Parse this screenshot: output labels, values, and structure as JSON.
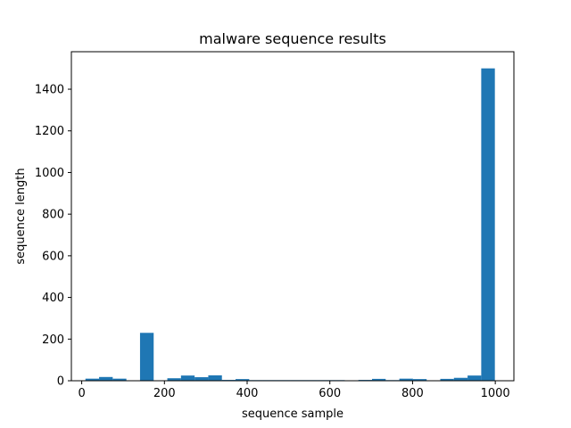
{
  "chart_data": {
    "type": "bar",
    "title": "malware sequence results",
    "xlabel": "sequence sample",
    "ylabel": "sequence length",
    "xlim": [
      -25,
      1045
    ],
    "ylim": [
      0,
      1580
    ],
    "xticks": [
      0,
      200,
      400,
      600,
      800,
      1000
    ],
    "yticks": [
      0,
      200,
      400,
      600,
      800,
      1000,
      1200,
      1400
    ],
    "bin_width": 33,
    "bins": [
      {
        "x0": 9,
        "value": 10
      },
      {
        "x0": 42,
        "value": 18
      },
      {
        "x0": 75,
        "value": 10
      },
      {
        "x0": 108,
        "value": 2
      },
      {
        "x0": 141,
        "value": 230
      },
      {
        "x0": 174,
        "value": 2
      },
      {
        "x0": 207,
        "value": 12
      },
      {
        "x0": 240,
        "value": 25
      },
      {
        "x0": 273,
        "value": 17
      },
      {
        "x0": 306,
        "value": 26
      },
      {
        "x0": 339,
        "value": 4
      },
      {
        "x0": 372,
        "value": 8
      },
      {
        "x0": 405,
        "value": 3
      },
      {
        "x0": 438,
        "value": 3
      },
      {
        "x0": 471,
        "value": 3
      },
      {
        "x0": 504,
        "value": 3
      },
      {
        "x0": 537,
        "value": 3
      },
      {
        "x0": 570,
        "value": 3
      },
      {
        "x0": 603,
        "value": 3
      },
      {
        "x0": 636,
        "value": 1
      },
      {
        "x0": 669,
        "value": 4
      },
      {
        "x0": 702,
        "value": 9
      },
      {
        "x0": 735,
        "value": 3
      },
      {
        "x0": 768,
        "value": 10
      },
      {
        "x0": 801,
        "value": 8
      },
      {
        "x0": 834,
        "value": 2
      },
      {
        "x0": 867,
        "value": 9
      },
      {
        "x0": 900,
        "value": 14
      },
      {
        "x0": 933,
        "value": 25
      },
      {
        "x0": 966,
        "value": 1500
      }
    ],
    "bar_color": "#1f77b4",
    "grid": false
  }
}
